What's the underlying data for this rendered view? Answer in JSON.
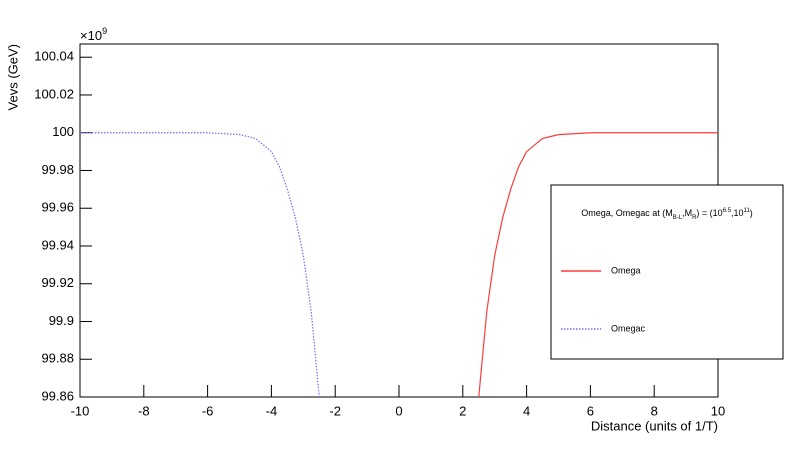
{
  "chart_data": {
    "type": "line",
    "y_label": "Vevs (GeV)",
    "x_label": "Distance (units of 1/T)",
    "y_multiplier": {
      "base": "×10",
      "exponent": "9"
    },
    "legend_title": [
      "Omega, Omegac at (M",
      "B-L",
      ",M",
      "R",
      ") = (10",
      "6.5",
      ",10",
      "11",
      ")"
    ],
    "xlim": [
      -10,
      10
    ],
    "xticks": [
      -10,
      -8,
      -6,
      -4,
      -2,
      0,
      2,
      4,
      6,
      8,
      10
    ],
    "ylim": [
      99.86,
      100.047
    ],
    "yticks": [
      99.86,
      99.88,
      99.9,
      99.92,
      99.94,
      99.96,
      99.98,
      100,
      100.02,
      100.04
    ],
    "legend": "right",
    "series": [
      {
        "name": "Omega",
        "color": "#ff3b3b",
        "dash": "solid",
        "x": [
          2.5,
          2.75,
          3,
          3.25,
          3.5,
          3.75,
          4,
          4.5,
          5,
          6,
          8,
          10
        ],
        "values": [
          99.86,
          99.905,
          99.935,
          99.955,
          99.97,
          99.982,
          99.99,
          99.997,
          99.999,
          100,
          100,
          100
        ]
      },
      {
        "name": "Omegac",
        "color": "#6f6fff",
        "dash": "dotted",
        "x": [
          -10,
          -8,
          -6,
          -5,
          -4.5,
          -4,
          -3.75,
          -3.5,
          -3.25,
          -3,
          -2.75,
          -2.5
        ],
        "values": [
          100,
          100,
          100,
          99.999,
          99.997,
          99.99,
          99.982,
          99.97,
          99.955,
          99.935,
          99.905,
          99.86
        ]
      }
    ]
  }
}
